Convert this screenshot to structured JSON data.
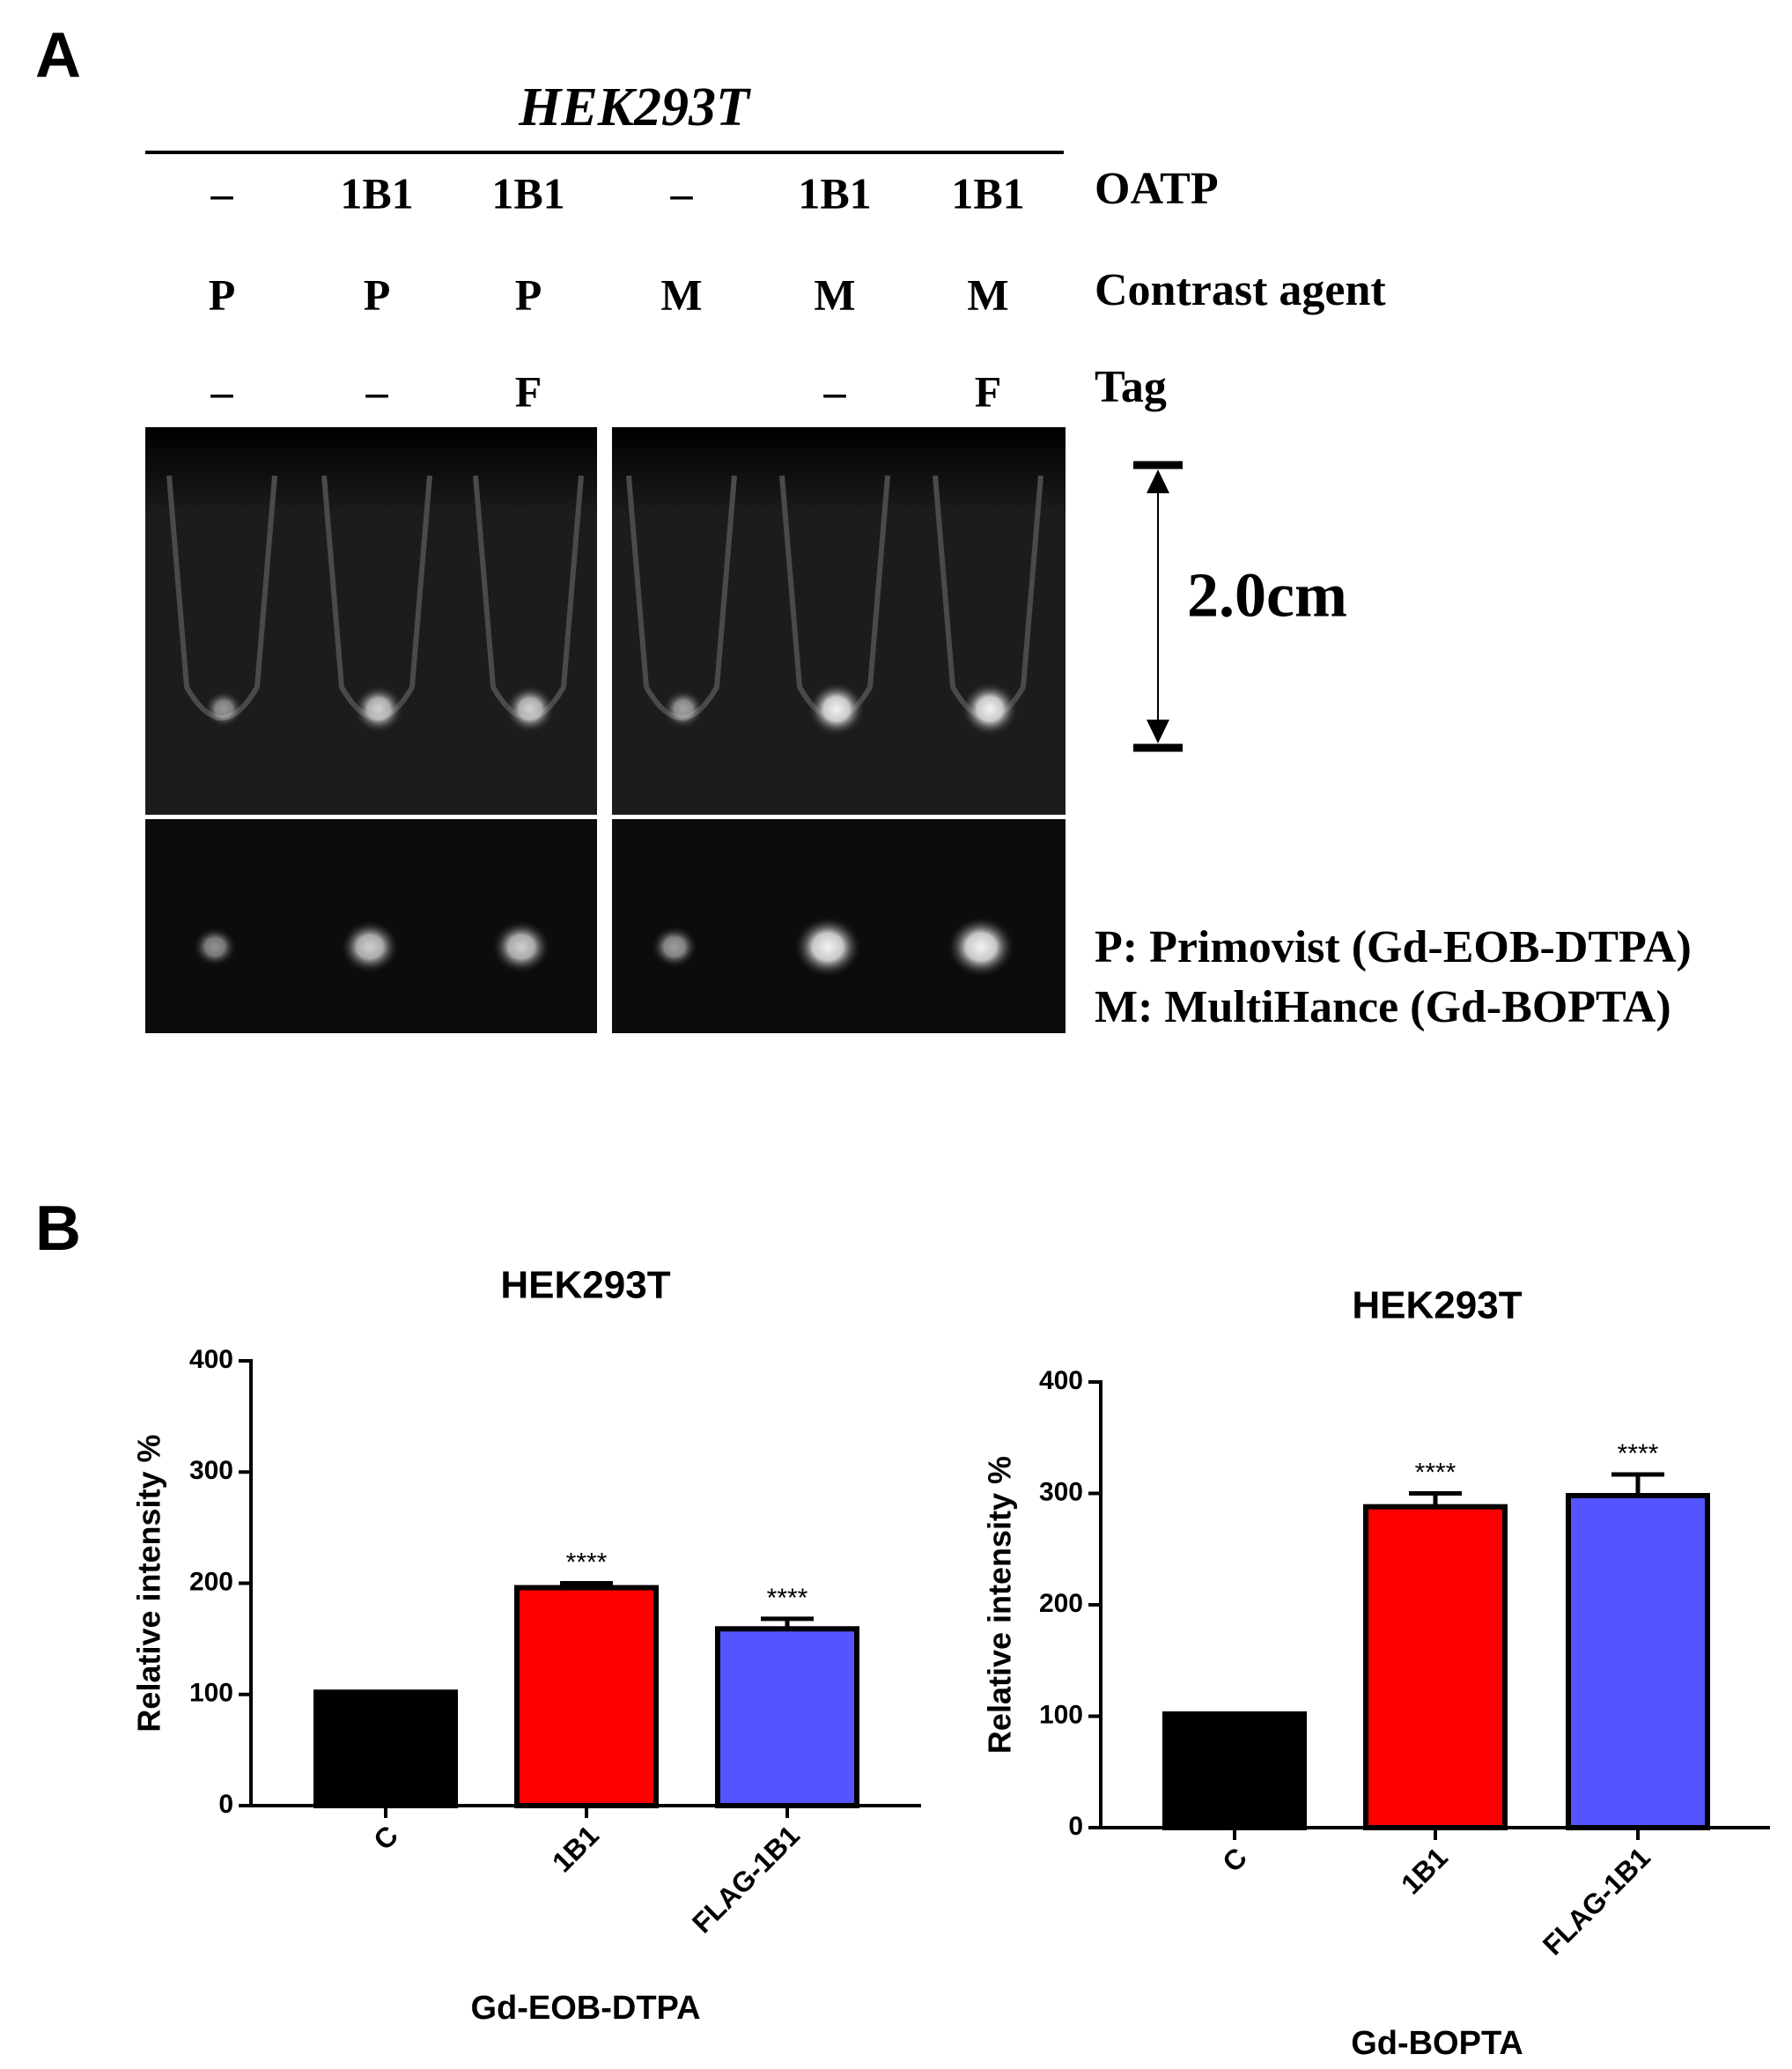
{
  "panel_a": {
    "label": "A",
    "title": "HEK293T",
    "rows": [
      {
        "name": "OATP",
        "cells": [
          "–",
          "1B1",
          "1B1",
          "–",
          "1B1",
          "1B1"
        ]
      },
      {
        "name": "Contrast agent",
        "cells": [
          "P",
          "P",
          "P",
          "M",
          "M",
          "M"
        ]
      },
      {
        "name": "Tag",
        "cells": [
          "–",
          "–",
          "F",
          null,
          "–",
          "F"
        ]
      }
    ],
    "scale_label": "2.0cm",
    "legend": [
      "P:  Primovist (Gd-EOB-DTPA)",
      "M: MultiHance (Gd-BOPTA)"
    ]
  },
  "panel_b": {
    "label": "B"
  },
  "chart_data": [
    {
      "type": "bar",
      "title": "HEK293T",
      "y_label": "Relative intensity %",
      "x_label": "Gd-EOB-DTPA",
      "categories": [
        "C",
        "1B1",
        "FLAG-1B1"
      ],
      "values": [
        102,
        196,
        159
      ],
      "errors": [
        0,
        4,
        9
      ],
      "colors": [
        "#000000",
        "#ff0000",
        "#5555ff"
      ],
      "annotations": [
        null,
        "****",
        "****"
      ],
      "ylim": [
        0,
        400
      ],
      "yticks": [
        0,
        100,
        200,
        300,
        400
      ]
    },
    {
      "type": "bar",
      "title": "HEK293T",
      "y_label": "Relative intensity %",
      "x_label": "Gd-BOPTA",
      "categories": [
        "C",
        "1B1",
        "FLAG-1B1"
      ],
      "values": [
        102,
        288,
        298
      ],
      "errors": [
        0,
        12,
        19
      ],
      "colors": [
        "#000000",
        "#ff0000",
        "#5555ff"
      ],
      "annotations": [
        null,
        "****",
        "****"
      ],
      "ylim": [
        0,
        400
      ],
      "yticks": [
        0,
        100,
        200,
        300,
        400
      ]
    }
  ]
}
